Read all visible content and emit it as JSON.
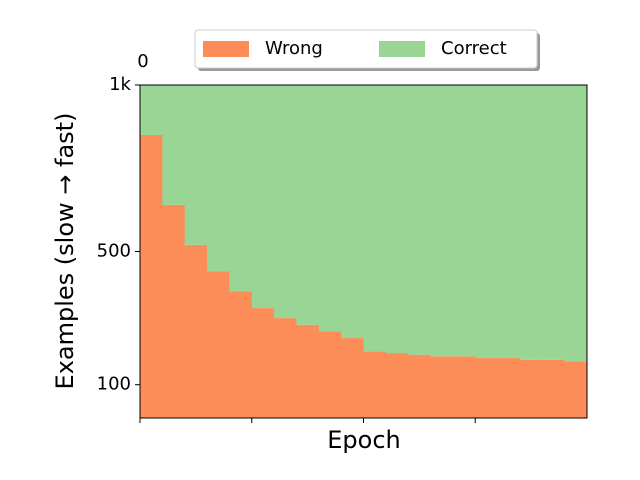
{
  "chart_data": {
    "type": "stacked_columns",
    "x_label": "Epoch",
    "y_label": "Examples (slow → fast)",
    "offset_label": "0",
    "x": [
      0,
      1,
      2,
      3,
      4,
      5,
      6,
      7,
      8,
      9,
      10,
      11,
      12,
      13,
      14,
      15,
      16,
      17,
      18,
      19
    ],
    "series": [
      {
        "name": "Wrong",
        "color": "#fc8d59",
        "values": [
          850,
          640,
          520,
          440,
          380,
          330,
          300,
          280,
          260,
          240,
          200,
          195,
          190,
          185,
          185,
          180,
          180,
          175,
          175,
          170
        ]
      },
      {
        "name": "Correct",
        "color": "#99d594",
        "values": [
          150,
          360,
          480,
          560,
          620,
          670,
          700,
          720,
          740,
          760,
          800,
          805,
          810,
          815,
          815,
          820,
          820,
          825,
          825,
          830
        ]
      }
    ],
    "xlim": [
      0,
      20
    ],
    "xticks": [
      0,
      5,
      10,
      15
    ],
    "ylim": [
      0,
      1000
    ],
    "yticks": [
      100,
      500,
      {
        "value": 1000,
        "label": "1k"
      }
    ],
    "legend": "upper-center-outside"
  }
}
